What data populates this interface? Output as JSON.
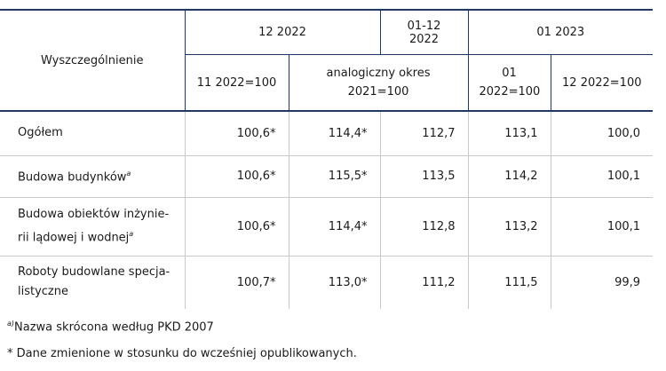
{
  "table": {
    "header": {
      "stub": "Wyszczególnienie",
      "groups": [
        "12 2022",
        "01-12 2022",
        "01 2023"
      ],
      "sub": [
        "11 2022=100",
        [
          "analogiczny okres",
          "2021=100"
        ],
        "01 2022=100",
        "12 2022=100"
      ]
    },
    "rows": [
      {
        "label": [
          "Ogółem"
        ],
        "note": null,
        "cells": [
          "100,6*",
          "114,4*",
          "112,7",
          "113,1",
          "100,0"
        ]
      },
      {
        "label": [
          "Budowa budynków"
        ],
        "note": "a",
        "cells": [
          "100,6*",
          "115,5*",
          "113,5",
          "114,2",
          "100,1"
        ]
      },
      {
        "label": [
          "Budowa obiektów inżynie-",
          "rii  lądowej i wodnej"
        ],
        "note": "a",
        "cells": [
          "100,6*",
          "114,4*",
          "112,8",
          "113,2",
          "100,1"
        ]
      },
      {
        "label": [
          "Roboty budowlane specja-",
          "listyczne"
        ],
        "note": null,
        "cells": [
          "100,7*",
          "113,0*",
          "111,2",
          "111,5",
          "99,9"
        ]
      }
    ]
  },
  "footnotes": [
    {
      "mark": "a)",
      "text": "Nazwa skrócona według PKD 2007"
    },
    {
      "mark": null,
      "text": "* Dane zmienione w stosunku do wcześniej opublikowanych."
    }
  ]
}
